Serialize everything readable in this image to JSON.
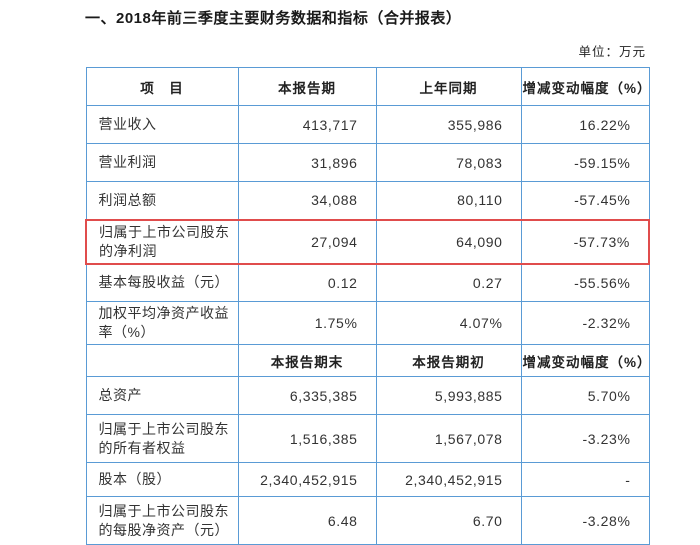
{
  "title": "一、2018年前三季度主要财务数据和指标（合并报表）",
  "unit_label": "单位：万元",
  "colors": {
    "border": "#5a9bd5",
    "highlight": "#e04c4c",
    "text": "#333333"
  },
  "table": {
    "header1": [
      "项　目",
      "本报告期",
      "上年同期",
      "增减变动幅度（%）"
    ],
    "rows1": [
      {
        "label": "营业收入",
        "current": "413,717",
        "prior": "355,986",
        "change": "16.22%"
      },
      {
        "label": "营业利润",
        "current": "31,896",
        "prior": "78,083",
        "change": "-59.15%"
      },
      {
        "label": "利润总额",
        "current": "34,088",
        "prior": "80,110",
        "change": "-57.45%"
      },
      {
        "label": "归属于上市公司股东的净利润",
        "current": "27,094",
        "prior": "64,090",
        "change": "-57.73%"
      },
      {
        "label": "基本每股收益（元）",
        "current": "0.12",
        "prior": "0.27",
        "change": "-55.56%"
      },
      {
        "label": "加权平均净资产收益率（%）",
        "current": "1.75%",
        "prior": "4.07%",
        "change": "-2.32%"
      }
    ],
    "header2": [
      "",
      "本报告期末",
      "本报告期初",
      "增减变动幅度（%）"
    ],
    "rows2": [
      {
        "label": "总资产",
        "current": "6,335,385",
        "prior": "5,993,885",
        "change": "5.70%"
      },
      {
        "label": "归属于上市公司股东的所有者权益",
        "current": "1,516,385",
        "prior": "1,567,078",
        "change": "-3.23%"
      },
      {
        "label": "股本（股）",
        "current": "2,340,452,915",
        "prior": "2,340,452,915",
        "change": "-"
      },
      {
        "label": "归属于上市公司股东的每股净资产（元）",
        "current": "6.48",
        "prior": "6.70",
        "change": "-3.28%"
      }
    ]
  }
}
